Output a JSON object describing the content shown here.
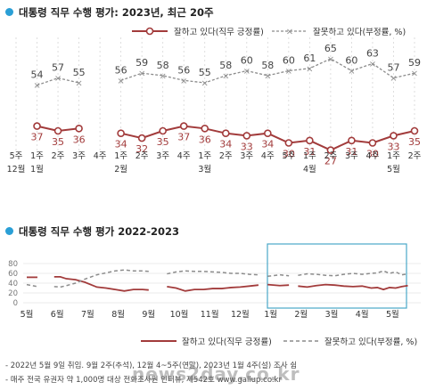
{
  "panel1": {
    "title": "대통령 직무 수행 평가: 2023년, 최근 20주",
    "legend": {
      "approve": "잘하고 있다(직무 긍정률)",
      "disapprove": "잘못하고 있다(부정률, %)"
    }
  },
  "panel2": {
    "title": "대통령 직무 수행 평가 2022-2023",
    "legend": {
      "approve": "잘하고 있다(직무 긍정률)",
      "disapprove": "잘못하고 있다(부정률, %)"
    }
  },
  "footnotes": [
    "- 2022년 5월 9일 취임. 9월 2주(추석), 12월 4~5주(연말), 2023년 1월 4주(설) 조사 쉼",
    "- 매주 전국 유권자 약 1,000명 대상 전화조사원 인터뷰, 제542호 www.gallup.co.kr"
  ],
  "watermark": "news2day.co.kr",
  "colors": {
    "approve": "#a23b3b",
    "disapprove": "#8c8c8c",
    "accent": "#2a9fd6",
    "highlight": "#4aa8c8"
  },
  "chart_data": [
    {
      "type": "line",
      "title": "대통령 직무 수행 평가: 2023년, 최근 20주",
      "weeks": [
        "5주",
        "1주",
        "2주",
        "3주",
        "4주",
        "1주",
        "2주",
        "3주",
        "4주",
        "1주",
        "2주",
        "3주",
        "4주",
        "5주",
        "1주",
        "2주",
        "3주",
        "4주",
        "1주",
        "2주"
      ],
      "month_labels": [
        {
          "index": 0,
          "label": "12월"
        },
        {
          "index": 1,
          "label": "1월"
        },
        {
          "index": 5,
          "label": "2월"
        },
        {
          "index": 9,
          "label": "3월"
        },
        {
          "index": 14,
          "label": "4월"
        },
        {
          "index": 18,
          "label": "5월"
        }
      ],
      "series": [
        {
          "name": "잘하고 있다(직무 긍정률)",
          "style": "solid-circle",
          "values": [
            37,
            35,
            36,
            null,
            34,
            32,
            35,
            37,
            36,
            34,
            33,
            34,
            30,
            31,
            27,
            31,
            30,
            33,
            35
          ]
        },
        {
          "name": "잘못하고 있다(부정률, %)",
          "style": "dashed-x",
          "values": [
            54,
            57,
            55,
            null,
            56,
            59,
            58,
            56,
            55,
            58,
            60,
            58,
            60,
            61,
            65,
            60,
            63,
            57,
            59
          ]
        }
      ],
      "value_index_offset": 1,
      "ylim": [
        10,
        80
      ]
    },
    {
      "type": "line",
      "title": "대통령 직무 수행 평가 2022-2023",
      "x_labels": [
        "5월",
        "6월",
        "7월",
        "8월",
        "9월",
        "10월",
        "11월",
        "12월",
        "1월",
        "2월",
        "3월",
        "4월",
        "5월"
      ],
      "yticks": [
        0,
        20,
        40,
        60,
        80
      ],
      "ylim": [
        0,
        80
      ],
      "grid": true,
      "highlight": "2023년 최근 20주 구간",
      "series": [
        {
          "name": "잘하고 있다(직무 긍정률)",
          "style": "solid",
          "segments": [
            [
              [
                0,
                52
              ],
              [
                0.35,
                52
              ]
            ],
            [
              [
                0.9,
                53
              ],
              [
                1.1,
                53
              ],
              [
                1.3,
                49
              ],
              [
                1.6,
                47
              ],
              [
                1.9,
                42
              ],
              [
                2.3,
                32
              ],
              [
                2.6,
                30
              ],
              [
                2.9,
                27
              ],
              [
                3.2,
                24
              ],
              [
                3.5,
                27
              ],
              [
                3.8,
                27
              ],
              [
                4.0,
                26
              ]
            ],
            [
              [
                4.6,
                33
              ],
              [
                4.9,
                30
              ],
              [
                5.2,
                24
              ],
              [
                5.5,
                27
              ],
              [
                5.8,
                27
              ],
              [
                6.1,
                29
              ],
              [
                6.4,
                29
              ],
              [
                6.7,
                31
              ],
              [
                7.0,
                32
              ],
              [
                7.3,
                34
              ],
              [
                7.6,
                36
              ]
            ],
            [
              [
                7.9,
                37
              ],
              [
                8.3,
                35
              ],
              [
                8.6,
                36
              ]
            ],
            [
              [
                8.9,
                34
              ],
              [
                9.2,
                32
              ],
              [
                9.5,
                35
              ],
              [
                9.8,
                37
              ],
              [
                10.1,
                36
              ],
              [
                10.4,
                34
              ],
              [
                10.7,
                33
              ],
              [
                11.0,
                34
              ],
              [
                11.3,
                30
              ],
              [
                11.5,
                31
              ],
              [
                11.7,
                27
              ],
              [
                11.9,
                31
              ],
              [
                12.1,
                30
              ],
              [
                12.3,
                33
              ],
              [
                12.5,
                35
              ]
            ]
          ]
        },
        {
          "name": "잘못하고 있다(부정률, %)",
          "style": "dashed",
          "segments": [
            [
              [
                0,
                37
              ],
              [
                0.35,
                33
              ]
            ],
            [
              [
                0.9,
                33
              ],
              [
                1.1,
                32
              ],
              [
                1.3,
                35
              ],
              [
                1.6,
                40
              ],
              [
                1.9,
                48
              ],
              [
                2.3,
                57
              ],
              [
                2.6,
                61
              ],
              [
                2.9,
                65
              ],
              [
                3.2,
                67
              ],
              [
                3.5,
                65
              ],
              [
                3.8,
                65
              ],
              [
                4.0,
                64
              ]
            ],
            [
              [
                4.6,
                59
              ],
              [
                4.9,
                63
              ],
              [
                5.2,
                65
              ],
              [
                5.5,
                64
              ],
              [
                5.8,
                64
              ],
              [
                6.1,
                63
              ],
              [
                6.4,
                62
              ],
              [
                6.7,
                60
              ],
              [
                7.0,
                60
              ],
              [
                7.3,
                58
              ],
              [
                7.6,
                57
              ]
            ],
            [
              [
                7.9,
                54
              ],
              [
                8.3,
                57
              ],
              [
                8.6,
                55
              ]
            ],
            [
              [
                8.9,
                56
              ],
              [
                9.2,
                59
              ],
              [
                9.5,
                58
              ],
              [
                9.8,
                56
              ],
              [
                10.1,
                55
              ],
              [
                10.4,
                58
              ],
              [
                10.7,
                60
              ],
              [
                11.0,
                58
              ],
              [
                11.3,
                60
              ],
              [
                11.5,
                61
              ],
              [
                11.7,
                65
              ],
              [
                11.9,
                60
              ],
              [
                12.1,
                63
              ],
              [
                12.3,
                57
              ],
              [
                12.5,
                59
              ]
            ]
          ]
        }
      ]
    }
  ]
}
